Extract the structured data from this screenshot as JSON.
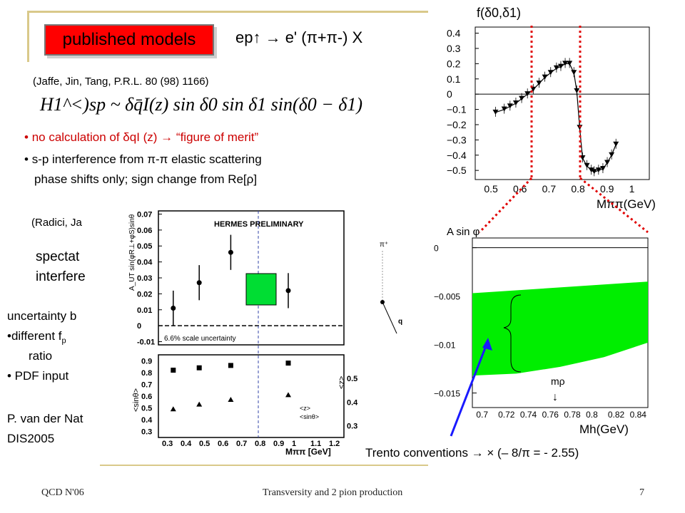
{
  "header": {
    "badge_label": "published models",
    "process": "ep↑ → e' (π+π-) X"
  },
  "ref1": "(Jaffe, Jin, Tang, P.R.L. 80 (98) 1166)",
  "formula": "H1^<)sp ~ δq̄I(z) sin δ0 sin δ1 sin(δ0 − δ1)",
  "bullets": [
    "no calculation of δqI (z) → “figure of merit”",
    "s-p interference from π-π elastic scattering",
    "phase shifts only; sign change from Re[ρ]"
  ],
  "ref2": "(Radici, Ja",
  "spectator": [
    "spectat",
    "interfere"
  ],
  "uncertainty": {
    "lines": [
      "uncertainty b",
      "•different  f",
      "ratio",
      "• PDF input"
    ],
    "sub": "p"
  },
  "author": [
    "P. van der Nat",
    "DIS2005"
  ],
  "trento": "Trento conventions → × (– 8/π = - 2.55)",
  "footer": {
    "left": "QCD N'06",
    "center": "Transversity and 2 pion production",
    "page": "7"
  },
  "colors": {
    "badge": "#ff0000",
    "band": "#00ee00",
    "box": "#00dd33",
    "arrow": "#1a1aff",
    "dotted": "#e00000",
    "rule": "#d9c98a"
  },
  "hermes_plot": {
    "banner": "HERMES PRELIMINARY",
    "ylabel_top": "A_UT sin(φR⊥+φS)sinθ",
    "ylabel_bottom": "<sinθ>",
    "ylabel_right": "<z>",
    "xlabel": "Mππ [GeV]",
    "scale_note": "6.6% scale uncertainty",
    "legend": [
      "<z>",
      "<sinθ>"
    ],
    "yticks_top": [
      "0.07",
      "0.06",
      "0.05",
      "0.04",
      "0.03",
      "0.02",
      "0.01",
      "0",
      "-0.01"
    ],
    "yticks_bottom": [
      "0.9",
      "0.8",
      "0.7",
      "0.6",
      "0.5",
      "0.4",
      "0.3"
    ],
    "yticks_right": [
      "0.5",
      "0.4",
      "0.3"
    ],
    "xticks": [
      "0.3",
      "0.4",
      "0.5",
      "0.6",
      "0.7",
      "0.8",
      "0.9",
      "1",
      "1.1",
      "1.2"
    ]
  },
  "chart_data": [
    {
      "type": "line",
      "ylabel": "f(δ0,δ1)",
      "xlabel": "Mππ(GeV)",
      "xticks": [
        "0.5",
        "0.6",
        "0.7",
        "0.8",
        "0.9",
        "1"
      ],
      "yticks": [
        "0.4",
        "0.3",
        "0.2",
        "0.1",
        "0",
        "−0.1",
        "−0.2",
        "−0.3",
        "−0.4",
        "−0.5"
      ],
      "xlim": [
        0.45,
        1.05
      ],
      "ylim": [
        -0.56,
        0.44
      ],
      "points": [
        [
          0.52,
          -0.12
        ],
        [
          0.55,
          -0.1
        ],
        [
          0.57,
          -0.08
        ],
        [
          0.59,
          -0.06
        ],
        [
          0.61,
          -0.03
        ],
        [
          0.63,
          0.0
        ],
        [
          0.65,
          0.03
        ],
        [
          0.67,
          0.07
        ],
        [
          0.69,
          0.11
        ],
        [
          0.71,
          0.14
        ],
        [
          0.73,
          0.17
        ],
        [
          0.745,
          0.18
        ],
        [
          0.76,
          0.2
        ],
        [
          0.775,
          0.2
        ],
        [
          0.79,
          0.14
        ],
        [
          0.8,
          0.02
        ],
        [
          0.81,
          -0.22
        ],
        [
          0.82,
          -0.42
        ],
        [
          0.835,
          -0.47
        ],
        [
          0.85,
          -0.5
        ],
        [
          0.86,
          -0.51
        ],
        [
          0.875,
          -0.5
        ],
        [
          0.89,
          -0.49
        ],
        [
          0.905,
          -0.45
        ],
        [
          0.92,
          -0.4
        ],
        [
          0.935,
          -0.33
        ]
      ]
    },
    {
      "type": "area",
      "ylabel": "A sin φ",
      "xlabel": "Mh(GeV)",
      "annotation": "mρ",
      "xticks": [
        "0.7",
        "0.72",
        "0.74",
        "0.76",
        "0.78",
        "0.8",
        "0.82",
        "0.84"
      ],
      "yticks": [
        "0",
        "−0.005",
        "−0.01",
        "−0.015"
      ],
      "xlim": [
        0.69,
        0.85
      ],
      "ylim": [
        -0.0165,
        0.001
      ],
      "upper": [
        [
          0.69,
          -0.0047
        ],
        [
          0.85,
          -0.0035
        ]
      ],
      "lower": [
        [
          0.69,
          -0.0132
        ],
        [
          0.73,
          -0.013
        ],
        [
          0.77,
          -0.0123
        ],
        [
          0.81,
          -0.0113
        ],
        [
          0.85,
          -0.0098
        ]
      ]
    },
    {
      "type": "scatter",
      "xlabel": "Mππ [GeV]",
      "xlim": [
        0.25,
        1.25
      ],
      "ylim": [
        -0.012,
        0.072
      ],
      "series": [
        {
          "x": [
            0.33,
            0.47,
            0.64,
            0.95
          ],
          "y": [
            0.011,
            0.027,
            0.046,
            0.022
          ],
          "err": [
            0.011,
            0.011,
            0.011,
            0.011
          ]
        }
      ]
    }
  ]
}
